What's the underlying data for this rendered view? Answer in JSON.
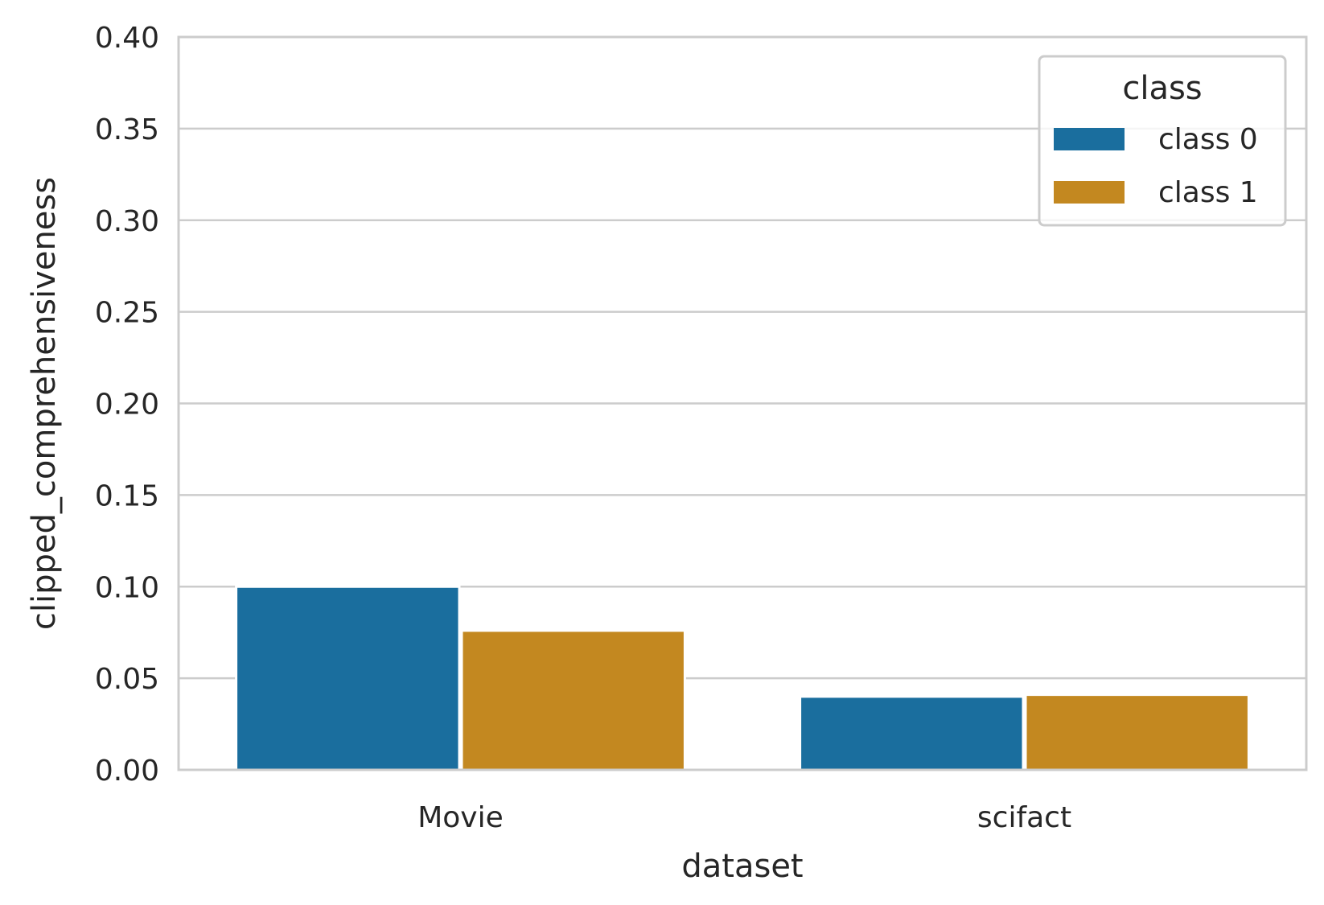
{
  "chart_data": {
    "type": "bar",
    "title": "",
    "xlabel": "dataset",
    "ylabel": "clipped_comprehensiveness",
    "categories": [
      "Movie",
      "scifact"
    ],
    "series": [
      {
        "name": "class 0",
        "values": [
          0.1,
          0.04
        ],
        "color": "#1a6e9e"
      },
      {
        "name": "class 1",
        "values": [
          0.076,
          0.041
        ],
        "color": "#c38820"
      }
    ],
    "ylim": [
      0,
      0.4
    ],
    "yticks": [
      "0.00",
      "0.05",
      "0.10",
      "0.15",
      "0.20",
      "0.25",
      "0.30",
      "0.35",
      "0.40"
    ],
    "grid": true,
    "legend": {
      "title": "class",
      "placement": "top-right"
    }
  }
}
